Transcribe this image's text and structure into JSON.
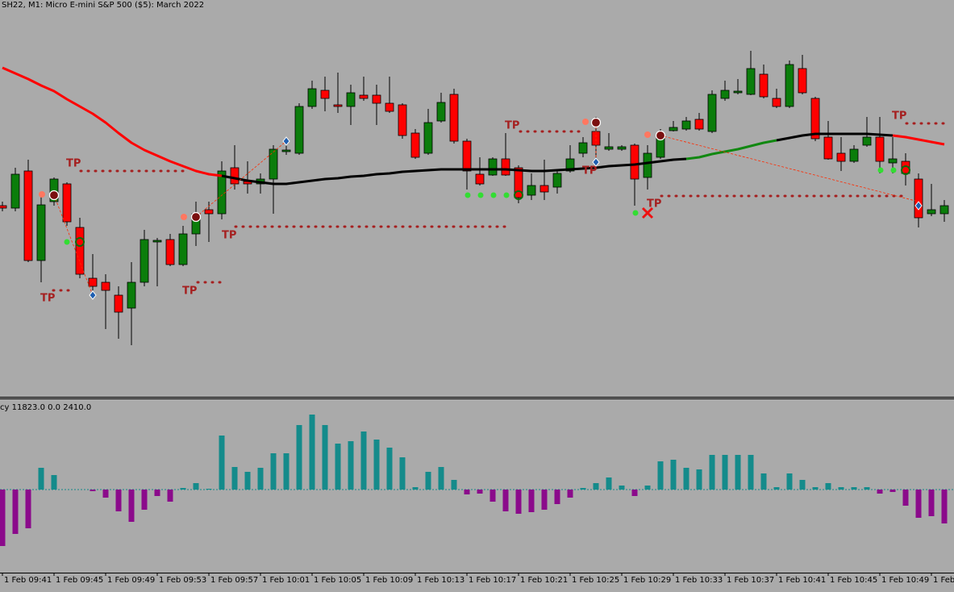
{
  "chart_data": [
    {
      "type": "candlestick",
      "title": "SH22, M1:  Micro E-mini S&P 500 ($5): March 2022",
      "categories": [
        "1 Feb 09:41",
        null,
        null,
        null,
        "1 Feb 09:45",
        null,
        null,
        null,
        "1 Feb 09:49",
        null,
        null,
        null,
        "1 Feb 09:53",
        null,
        null,
        null,
        "1 Feb 09:57",
        null,
        null,
        null,
        "1 Feb 10:01",
        null,
        null,
        null,
        "1 Feb 10:05",
        null,
        null,
        null,
        "1 Feb 10:09",
        null,
        null,
        null,
        "1 Feb 10:13",
        null,
        null,
        null,
        "1 Feb 10:17",
        null,
        null,
        null,
        "1 Feb 10:21",
        null,
        null,
        null,
        "1 Feb 10:25",
        null,
        null,
        null,
        "1 Feb 10:29",
        null,
        null,
        null,
        "1 Feb 10:33",
        null,
        null,
        null,
        "1 Feb 10:37",
        null,
        null,
        null,
        "1 Feb 10:41",
        null,
        null,
        null,
        "1 Feb 10:45",
        null,
        null,
        null,
        "1 Feb 10:49",
        null,
        null,
        null,
        "1 Feb",
        null
      ],
      "open": [
        4534.5,
        4534.2,
        4538.8,
        4527.7,
        4535.0,
        4537.2,
        4531.8,
        4525.5,
        4525.0,
        4523.4,
        4521.8,
        4525.0,
        4530.0,
        4530.3,
        4527.2,
        4531.0,
        4534.0,
        4533.5,
        4539.2,
        4537.5,
        4537.2,
        4537.8,
        4541.2,
        4541.0,
        4546.8,
        4548.8,
        4547.0,
        4546.8,
        4548.2,
        4548.2,
        4547.2,
        4547.0,
        4543.5,
        4541.0,
        4545.0,
        4548.3,
        4542.5,
        4538.4,
        4538.3,
        4540.3,
        4539.2,
        4535.8,
        4537.0,
        4536.8,
        4538.8,
        4541.0,
        4543.7,
        4541.5,
        4541.5,
        4542.0,
        4538.0,
        4540.5,
        4543.8,
        4544.0,
        4545.2,
        4543.7,
        4547.8,
        4548.5,
        4548.3,
        4550.8,
        4547.8,
        4546.8,
        4551.5,
        4547.8,
        4543.0,
        4541.0,
        4540.0,
        4542.0,
        4543.0,
        4539.8,
        4540.0,
        4537.8,
        4533.5,
        4533.5
      ],
      "high": [
        4535.0,
        4539.2,
        4540.2,
        4536.0,
        4538.0,
        4537.4,
        4533.0,
        4528.5,
        4526.0,
        4524.5,
        4527.5,
        4531.5,
        4530.5,
        4531.0,
        4532.0,
        4535.0,
        4535.0,
        4540.0,
        4542.0,
        4540.0,
        4538.5,
        4542.0,
        4542.0,
        4547.2,
        4550.0,
        4550.5,
        4551.0,
        4549.5,
        4550.5,
        4549.5,
        4550.5,
        4547.2,
        4544.0,
        4546.5,
        4548.5,
        4549.0,
        4542.8,
        4540.5,
        4540.5,
        4543.5,
        4539.5,
        4538.5,
        4540.2,
        4538.8,
        4542.0,
        4543.0,
        4545.5,
        4543.5,
        4542.0,
        4542.2,
        4542.0,
        4544.0,
        4545.0,
        4545.5,
        4546.0,
        4548.8,
        4550.0,
        4550.2,
        4553.7,
        4552.0,
        4549.0,
        4552.5,
        4553.2,
        4548.0,
        4545.0,
        4543.0,
        4542.0,
        4545.5,
        4545.5,
        4543.0,
        4541.0,
        4538.5,
        4537.2,
        4535.2
      ],
      "low": [
        4533.8,
        4533.8,
        4527.5,
        4525.0,
        4534.5,
        4532.0,
        4525.5,
        4524.0,
        4519.2,
        4518.0,
        4517.2,
        4524.5,
        4524.5,
        4527.0,
        4527.0,
        4529.5,
        4530.0,
        4532.8,
        4536.5,
        4536.0,
        4536.0,
        4533.5,
        4540.8,
        4540.8,
        4546.5,
        4546.2,
        4546.0,
        4544.5,
        4547.5,
        4544.5,
        4546.0,
        4542.8,
        4540.3,
        4540.8,
        4544.8,
        4542.2,
        4536.5,
        4537.0,
        4538.2,
        4538.2,
        4534.8,
        4535.2,
        4535.2,
        4536.0,
        4538.6,
        4540.5,
        4540.0,
        4541.3,
        4541.3,
        4534.5,
        4536.5,
        4540.3,
        4543.7,
        4543.8,
        4543.8,
        4543.5,
        4547.5,
        4548.3,
        4548.2,
        4547.8,
        4546.6,
        4546.6,
        4548.3,
        4542.5,
        4540.2,
        4538.8,
        4539.8,
        4541.8,
        4538.5,
        4538.5,
        4537.0,
        4531.8,
        4533.2,
        4532.5
      ],
      "close": [
        4534.2,
        4538.4,
        4527.7,
        4534.6,
        4537.8,
        4532.5,
        4526.0,
        4524.5,
        4524.0,
        4521.3,
        4525.0,
        4530.3,
        4530.2,
        4527.2,
        4531.0,
        4533.5,
        4533.5,
        4538.8,
        4537.2,
        4537.2,
        4537.8,
        4541.5,
        4541.4,
        4546.8,
        4549.0,
        4547.8,
        4546.8,
        4548.5,
        4547.8,
        4547.2,
        4546.2,
        4543.2,
        4540.5,
        4544.8,
        4547.3,
        4542.5,
        4538.8,
        4537.2,
        4540.3,
        4538.3,
        4535.5,
        4537.0,
        4536.2,
        4538.5,
        4540.3,
        4542.3,
        4542.0,
        4541.8,
        4541.8,
        4537.8,
        4541.0,
        4543.3,
        4544.2,
        4545.0,
        4544.0,
        4548.3,
        4548.8,
        4548.7,
        4551.5,
        4548.0,
        4546.8,
        4552.0,
        4548.5,
        4542.8,
        4540.3,
        4540.0,
        4541.5,
        4543.0,
        4540.0,
        4540.3,
        4538.5,
        4533.0,
        4534.0,
        4534.5
      ],
      "up_color": "#0b7d0b",
      "down_color": "#ff0000",
      "ma": [
        4551.6,
        4550.9,
        4550.2,
        4549.4,
        4548.7,
        4547.7,
        4546.8,
        4545.9,
        4544.8,
        4543.5,
        4542.3,
        4541.4,
        4540.7,
        4540.0,
        4539.4,
        4538.8,
        4538.4,
        4538.2,
        4537.9,
        4537.6,
        4537.4,
        4537.2,
        4537.2,
        4537.4,
        4537.6,
        4537.8,
        4537.9,
        4538.1,
        4538.2,
        4538.4,
        4538.5,
        4538.7,
        4538.8,
        4538.9,
        4539.0,
        4539.0,
        4539.0,
        4539.0,
        4539.0,
        4539.0,
        4538.9,
        4538.8,
        4538.8,
        4538.9,
        4539.0,
        4539.1,
        4539.2,
        4539.4,
        4539.5,
        4539.6,
        4539.8,
        4540.0,
        4540.2,
        4540.3,
        4540.5,
        4540.9,
        4541.2,
        4541.5,
        4541.9,
        4542.3,
        4542.6,
        4542.9,
        4543.2,
        4543.4,
        4543.4,
        4543.4,
        4543.4,
        4543.4,
        4543.3,
        4543.2,
        4543.0,
        4542.7,
        4542.4,
        4542.1
      ],
      "ma_segments": [
        {
          "color": "#ff0000",
          "from": 0,
          "to": 17
        },
        {
          "color": "#000000",
          "from": 17,
          "to": 53
        },
        {
          "color": "#118811",
          "from": 53,
          "to": 60
        },
        {
          "color": "#000000",
          "from": 60,
          "to": 69
        },
        {
          "color": "#ff0000",
          "from": 69,
          "to": 73
        }
      ],
      "ylim": [
        4510.8,
        4560
      ],
      "tp_label": "TP"
    },
    {
      "type": "bar",
      "title": "cy 11823.0 0.0 2410.0",
      "values": [
        -8400,
        -6600,
        -5760,
        3240,
        2160,
        0,
        0,
        -240,
        -1200,
        -3240,
        -4800,
        -3000,
        -960,
        -1800,
        240,
        960,
        120,
        8040,
        3360,
        2640,
        3240,
        5400,
        5400,
        9600,
        11160,
        9600,
        6840,
        7200,
        8640,
        7440,
        6240,
        4800,
        360,
        2640,
        3360,
        1440,
        -720,
        -600,
        -1800,
        -3240,
        -3600,
        -3360,
        -3000,
        -2160,
        -1200,
        240,
        960,
        1800,
        600,
        -960,
        600,
        4200,
        4440,
        3240,
        3000,
        5160,
        5160,
        5160,
        5160,
        2400,
        360,
        2400,
        1440,
        360,
        960,
        360,
        360,
        360,
        -600,
        -360,
        -2400,
        -4200,
        -3960,
        -5040
      ],
      "up_color": "#148b8b",
      "down_color": "#8b0a8b",
      "ylim": [
        -12360,
        13440
      ]
    }
  ]
}
